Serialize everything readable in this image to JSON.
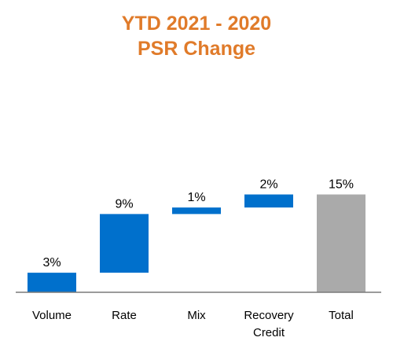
{
  "chart_data": {
    "type": "waterfall",
    "title_lines": [
      "YTD 2021 - 2020",
      "PSR Change"
    ],
    "categories": [
      [
        "Volume"
      ],
      [
        "Rate"
      ],
      [
        "Mix"
      ],
      [
        "Recovery",
        "Credit"
      ],
      [
        "Total"
      ]
    ],
    "values": [
      3,
      9,
      1,
      2,
      15
    ],
    "data_labels": [
      "3%",
      "9%",
      "1%",
      "2%",
      "15%"
    ],
    "is_total": [
      false,
      false,
      false,
      false,
      true
    ],
    "xlabel": "",
    "ylabel": "",
    "grid": false,
    "legend": "none"
  },
  "colors": {
    "title": "#e07b2a",
    "increase": "#0070cc",
    "total": "#aaaaaa",
    "axis": "#7a7a7a",
    "label_text": "#000000"
  }
}
